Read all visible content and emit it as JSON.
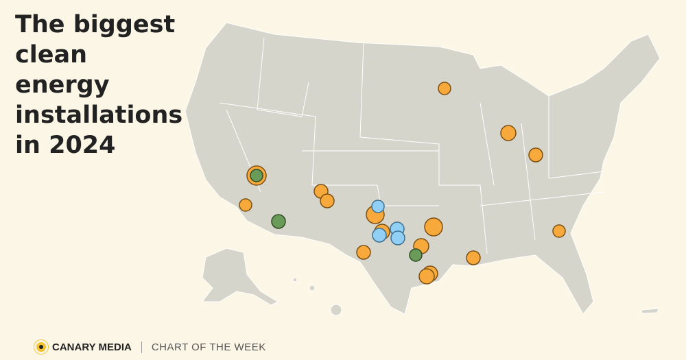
{
  "header": {
    "title_lines": [
      "The biggest",
      "clean",
      "energy",
      "installations",
      "in 2024"
    ]
  },
  "footer": {
    "brand": "CANARY MEDIA",
    "section": "CHART OF THE WEEK"
  }
}
